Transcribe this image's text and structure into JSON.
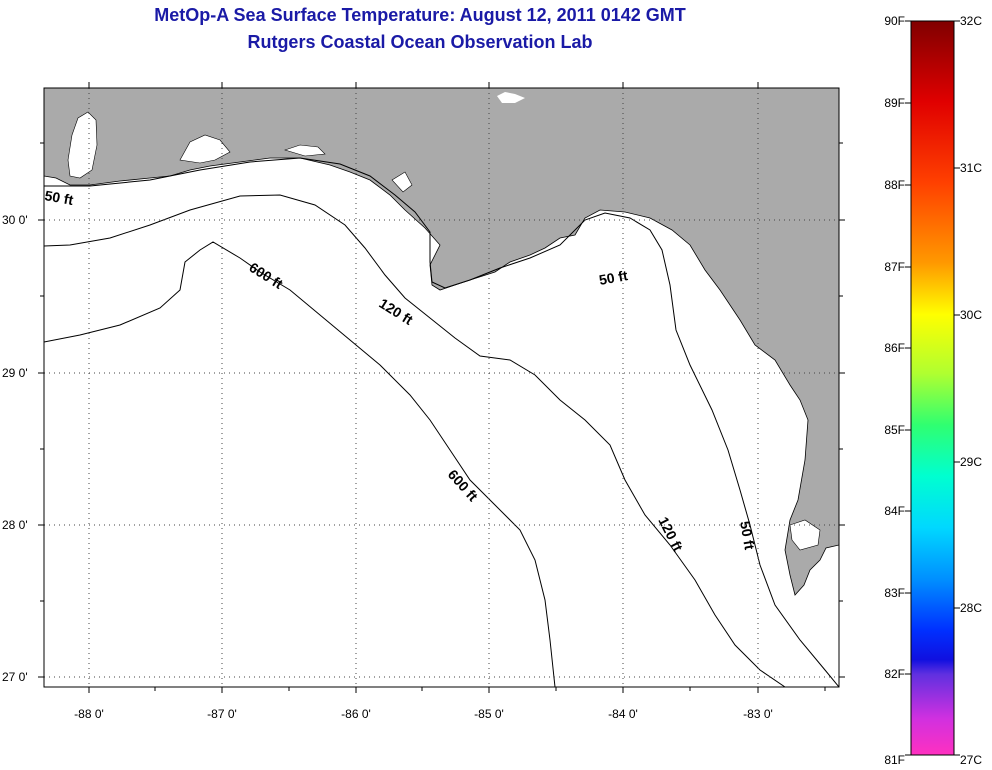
{
  "title": "MetOp-A Sea Surface Temperature:  August 12, 2011 0142 GMT",
  "subtitle": "Rutgers Coastal Ocean Observation Lab",
  "map": {
    "longitude_labels": [
      "-88 0'",
      "-87 0'",
      "-86 0'",
      "-85 0'",
      "-84 0'",
      "-83 0'"
    ],
    "latitude_labels": [
      "30 0'",
      "29 0'",
      "28 0'",
      "27 0'"
    ],
    "contour_labels": [
      "50 ft",
      "600 ft",
      "120 ft",
      "50 ft",
      "600 ft",
      "120 ft",
      "50 ft"
    ],
    "land_color": "#aaaaaa",
    "water_color": "#ffffff"
  },
  "colorbar": {
    "fahrenheit_labels": [
      "90F",
      "89F",
      "88F",
      "87F",
      "86F",
      "85F",
      "84F",
      "83F",
      "82F",
      "81F"
    ],
    "celsius_labels": [
      "32C",
      "31C",
      "30C",
      "29C",
      "28C",
      "27C"
    ]
  }
}
